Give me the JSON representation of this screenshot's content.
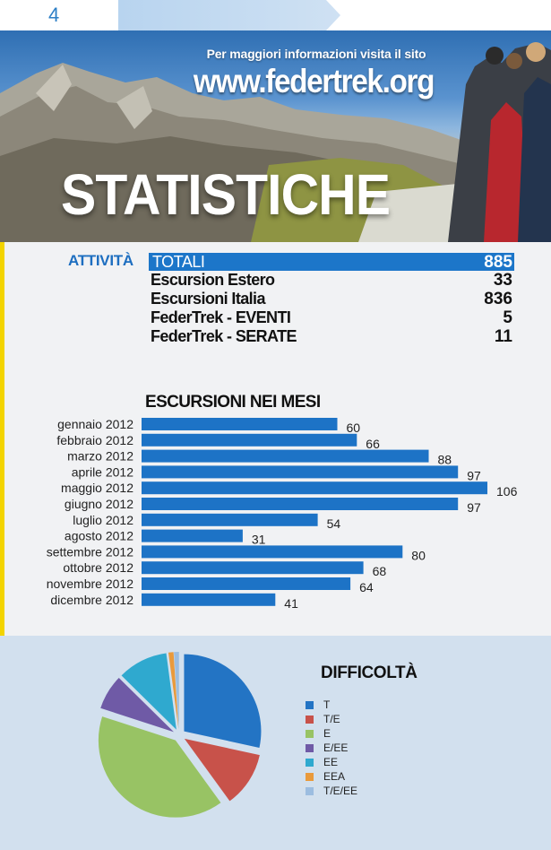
{
  "header": {
    "page_number": "4",
    "info_line": "Per maggiori informazioni visita il sito",
    "site_url": "www.federtrek.org",
    "title": "STATISTICHE"
  },
  "attivita": {
    "label": "ATTIVITÀ",
    "totali_label": "TOTALI",
    "totali_value": "885",
    "rows": [
      {
        "label": "Escursion Estero",
        "value": "33"
      },
      {
        "label": "Escursioni  Italia",
        "value": "836"
      },
      {
        "label": "FederTrek - EVENTI",
        "value": "5"
      },
      {
        "label": "FederTrek - SERATE",
        "value": "11"
      }
    ]
  },
  "colors": {
    "accent_blue": "#1c76c9",
    "bar_blue": "#1d73c6",
    "panel_bg": "#d2e0ee"
  },
  "chart_data": [
    {
      "type": "bar",
      "orientation": "horizontal",
      "title": "ESCURSIONI NEI MESI",
      "categories": [
        "gennaio 2012",
        "febbraio 2012",
        "marzo 2012",
        "aprile 2012",
        "maggio 2012",
        "giugno 2012",
        "luglio 2012",
        "agosto 2012",
        "settembre 2012",
        "ottobre 2012",
        "novembre 2012",
        "dicembre 2012"
      ],
      "values": [
        60,
        66,
        88,
        97,
        106,
        97,
        54,
        31,
        80,
        68,
        64,
        41
      ],
      "xlim": [
        0,
        106
      ],
      "grid": false,
      "legend": "none"
    },
    {
      "type": "pie",
      "title": "DIFFICOLTÀ",
      "legend_position": "right",
      "slices": [
        {
          "label": "T",
          "value": 27,
          "color": "#2374c4"
        },
        {
          "label": "T/E",
          "value": 11,
          "color": "#c8524a"
        },
        {
          "label": "E",
          "value": 38,
          "color": "#98c364"
        },
        {
          "label": "E/EE",
          "value": 7,
          "color": "#6f5aa6"
        },
        {
          "label": "EE",
          "value": 10,
          "color": "#2fa9cf"
        },
        {
          "label": "EEA",
          "value": 1,
          "color": "#e99a3c"
        },
        {
          "label": "T/E/EE",
          "value": 1,
          "color": "#9cbde0"
        }
      ]
    }
  ]
}
